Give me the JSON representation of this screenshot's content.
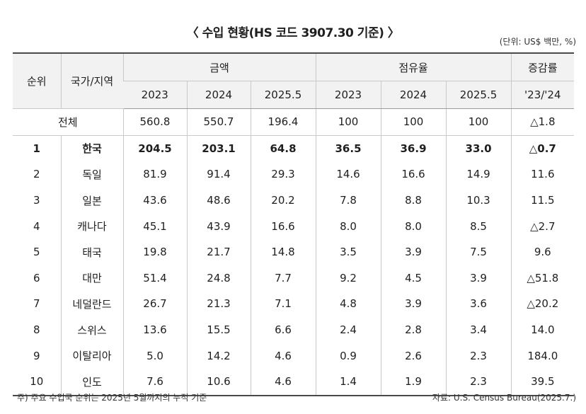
{
  "title": "〈 수입 현황(HS 코드 3907.30 기준) 〉",
  "unit": "(단위: US$ 백만, %)",
  "header": {
    "rank": "순위",
    "country": "국가/지역",
    "amount": "금액",
    "share": "점유율",
    "growth": "증감률",
    "years": [
      "2023",
      "2024",
      "2025.5"
    ],
    "growth_period": "'23/'24"
  },
  "total": {
    "label": "전체",
    "values": [
      "560.8",
      "550.7",
      "196.4",
      "100",
      "100",
      "100",
      "△1.8"
    ]
  },
  "rows": [
    {
      "rank": "1",
      "country": "한국",
      "values": [
        "204.5",
        "203.1",
        "64.8",
        "36.5",
        "36.9",
        "33.0",
        "△0.7"
      ]
    },
    {
      "rank": "2",
      "country": "독일",
      "values": [
        "81.9",
        "91.4",
        "29.3",
        "14.6",
        "16.6",
        "14.9",
        "11.6"
      ]
    },
    {
      "rank": "3",
      "country": "일본",
      "values": [
        "43.6",
        "48.6",
        "20.2",
        "7.8",
        "8.8",
        "10.3",
        "11.5"
      ]
    },
    {
      "rank": "4",
      "country": "캐나다",
      "values": [
        "45.1",
        "43.9",
        "16.6",
        "8.0",
        "8.0",
        "8.5",
        "△2.7"
      ]
    },
    {
      "rank": "5",
      "country": "태국",
      "values": [
        "19.8",
        "21.7",
        "14.8",
        "3.5",
        "3.9",
        "7.5",
        "9.6"
      ]
    },
    {
      "rank": "6",
      "country": "대만",
      "values": [
        "51.4",
        "24.8",
        "7.7",
        "9.2",
        "4.5",
        "3.9",
        "△51.8"
      ]
    },
    {
      "rank": "7",
      "country": "네덜란드",
      "values": [
        "26.7",
        "21.3",
        "7.1",
        "4.8",
        "3.9",
        "3.6",
        "△20.2"
      ]
    },
    {
      "rank": "8",
      "country": "스위스",
      "values": [
        "13.6",
        "15.5",
        "6.6",
        "2.4",
        "2.8",
        "3.4",
        "14.0"
      ]
    },
    {
      "rank": "9",
      "country": "이탈리아",
      "values": [
        "5.0",
        "14.2",
        "4.6",
        "0.9",
        "2.6",
        "2.3",
        "184.0"
      ]
    },
    {
      "rank": "10",
      "country": "인도",
      "values": [
        "7.6",
        "10.6",
        "4.6",
        "1.4",
        "1.9",
        "2.3",
        "39.5"
      ]
    }
  ],
  "footnote": "주) 주요 수입국 순위는 2025년 5월까지의 누적 기준",
  "source": "자료: U.S. Census Bureau(2025.7.)"
}
